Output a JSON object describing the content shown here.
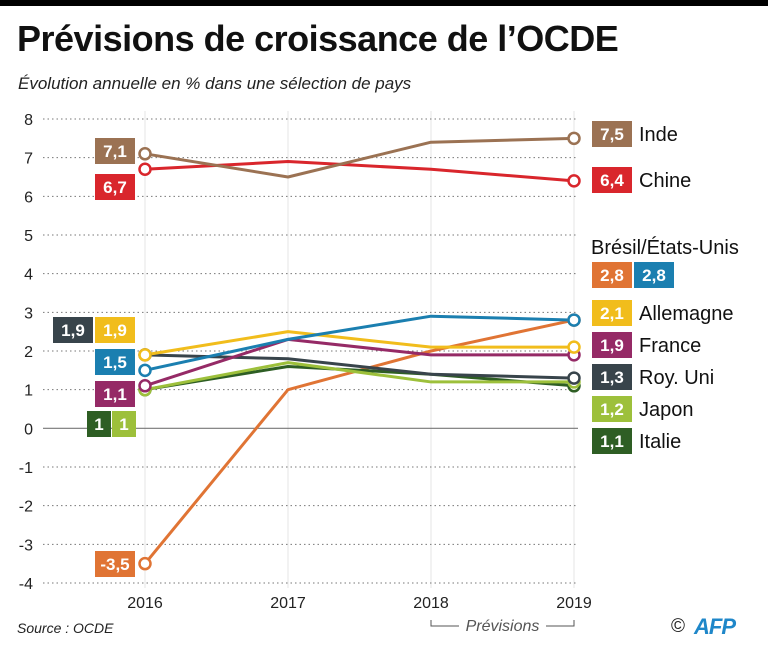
{
  "header": {
    "title": "Prévisions de croissance de l’OCDE",
    "subtitle": "Évolution annuelle en % dans une sélection de pays"
  },
  "footer": {
    "source": "Source : OCDE",
    "copyright": "©",
    "logo": "AFP",
    "forecast_label": "Prévisions"
  },
  "chart_data": {
    "type": "line",
    "title": "Prévisions de croissance de l’OCDE",
    "subtitle": "Évolution annuelle en % dans une sélection de pays",
    "xlabel": "",
    "ylabel": "",
    "x": [
      "2016",
      "2017",
      "2018",
      "2019"
    ],
    "forecast_range": [
      "2018",
      "2019"
    ],
    "ylim": [
      -4,
      8
    ],
    "yticks": [
      "8",
      "7",
      "6",
      "5",
      "4",
      "3",
      "2",
      "1",
      "0",
      "-1",
      "-2",
      "-3",
      "-4"
    ],
    "grid": true,
    "legend_placement": "right",
    "series": [
      {
        "name": "Inde",
        "color": "#9b7253",
        "values": [
          7.1,
          6.5,
          7.4,
          7.5
        ],
        "start_label": "7,1",
        "end_label": "7,5"
      },
      {
        "name": "Chine",
        "color": "#d9262c",
        "values": [
          6.7,
          6.9,
          6.7,
          6.4
        ],
        "start_label": "6,7",
        "end_label": "6,4"
      },
      {
        "name": "Brésil",
        "color": "#e07434",
        "values": [
          -3.5,
          1.0,
          2.0,
          2.8
        ],
        "start_label": "-3,5",
        "end_label": "2,8"
      },
      {
        "name": "États-Unis",
        "color": "#1b7fb0",
        "values": [
          1.5,
          2.3,
          2.9,
          2.8
        ],
        "start_label": "1,5",
        "end_label": "2,8"
      },
      {
        "name": "Allemagne",
        "color": "#f1bd1c",
        "values": [
          1.9,
          2.5,
          2.1,
          2.1
        ],
        "start_label": "1,9",
        "end_label": "2,1"
      },
      {
        "name": "France",
        "color": "#952a66",
        "values": [
          1.1,
          2.3,
          1.9,
          1.9
        ],
        "start_label": "1,1",
        "end_label": "1,9"
      },
      {
        "name": "Roy. Uni",
        "color": "#38444b",
        "values": [
          1.9,
          1.8,
          1.4,
          1.3
        ],
        "start_label": "1,9",
        "end_label": "1,3"
      },
      {
        "name": "Japon",
        "color": "#9dc03b",
        "values": [
          1.0,
          1.7,
          1.2,
          1.2
        ],
        "start_label": "1",
        "end_label": "1,2"
      },
      {
        "name": "Italie",
        "color": "#2e5e24",
        "values": [
          1.0,
          1.6,
          1.4,
          1.1
        ],
        "start_label": "1",
        "end_label": "1,1"
      }
    ],
    "legend_group_label": "Brésil/États-Unis"
  }
}
